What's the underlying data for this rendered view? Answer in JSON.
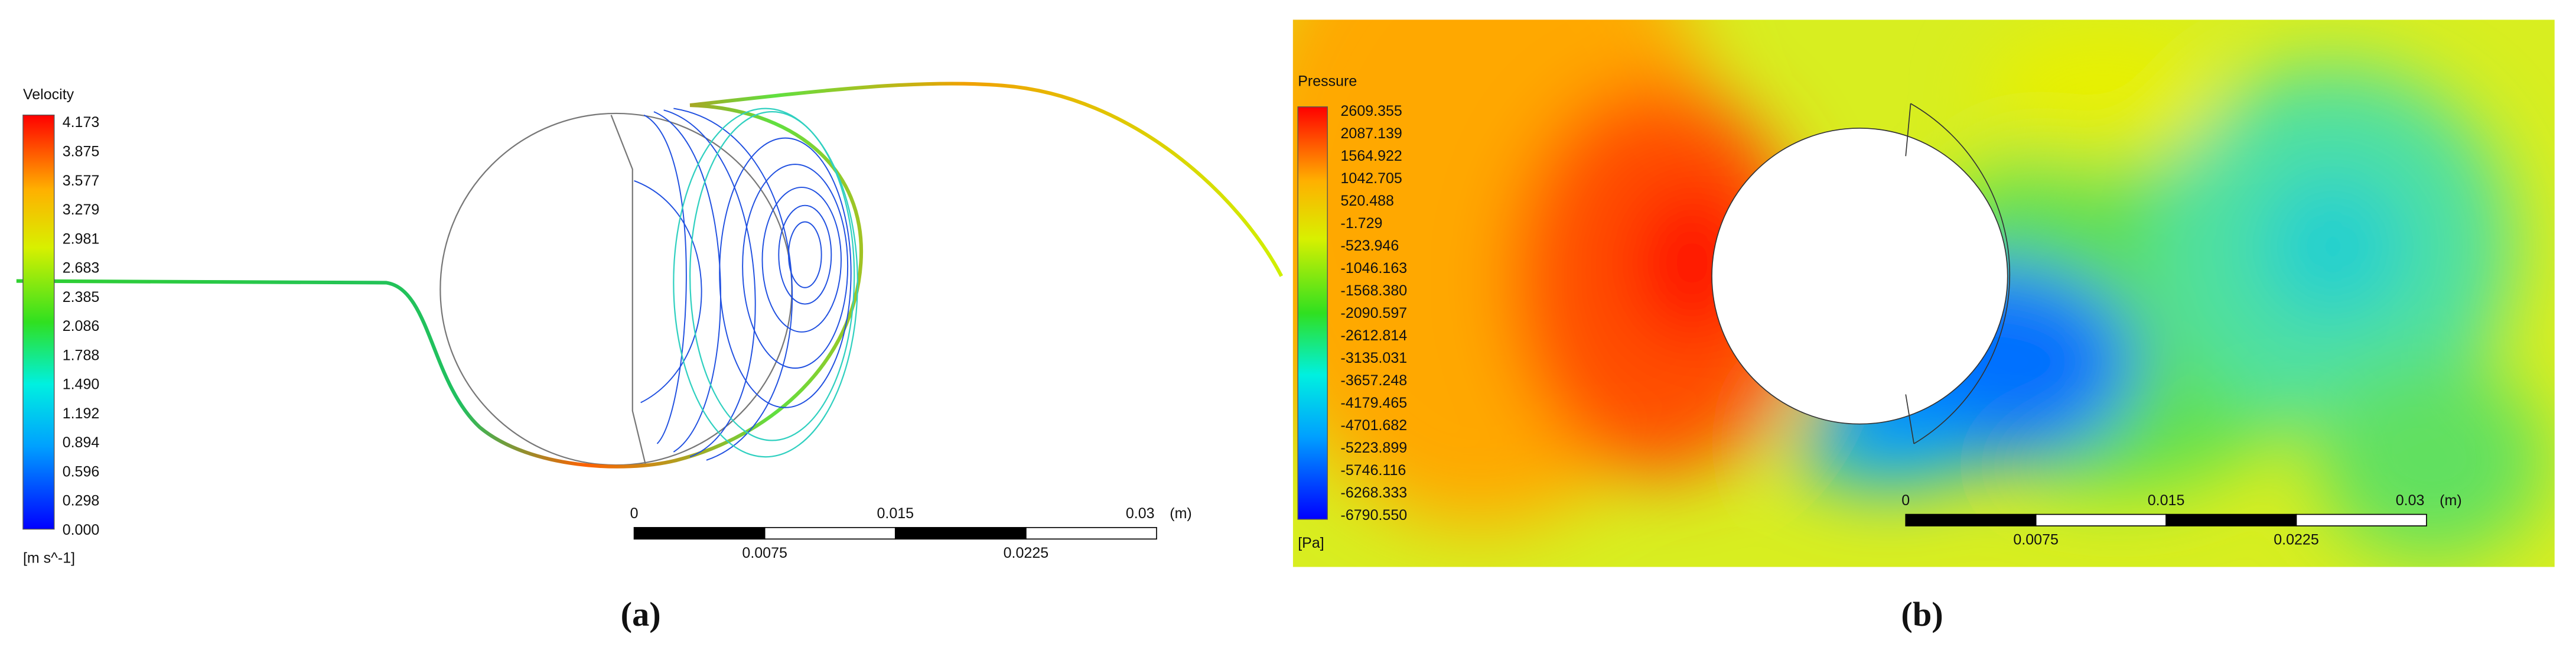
{
  "panels": [
    {
      "caption": "(a)",
      "legend": {
        "title": "Velocity",
        "ticks": [
          "4.173",
          "3.875",
          "3.577",
          "3.279",
          "2.981",
          "2.683",
          "2.385",
          "2.086",
          "1.788",
          "1.490",
          "1.192",
          "0.894",
          "0.596",
          "0.298",
          "0.000"
        ],
        "unit": "[m s^-1]"
      },
      "scale_bar": {
        "labels_top": [
          "0",
          "0.015",
          "0.03"
        ],
        "unit": "(m)",
        "labels_bottom": [
          "0.0075",
          "0.0225"
        ]
      }
    },
    {
      "caption": "(b)",
      "legend": {
        "title": "Pressure",
        "ticks": [
          "2609.355",
          "2087.139",
          "1564.922",
          "1042.705",
          "520.488",
          "-1.729",
          "-523.946",
          "-1046.163",
          "-1568.380",
          "-2090.597",
          "-2612.814",
          "-3135.031",
          "-3657.248",
          "-4179.465",
          "-4701.682",
          "-5223.899",
          "-5746.116",
          "-6268.333",
          "-6790.550"
        ],
        "unit": "[Pa]"
      },
      "scale_bar": {
        "labels_top": [
          "0",
          "0.015",
          "0.03"
        ],
        "unit": "(m)",
        "labels_bottom": [
          "0.0075",
          "0.0225"
        ]
      }
    }
  ]
}
